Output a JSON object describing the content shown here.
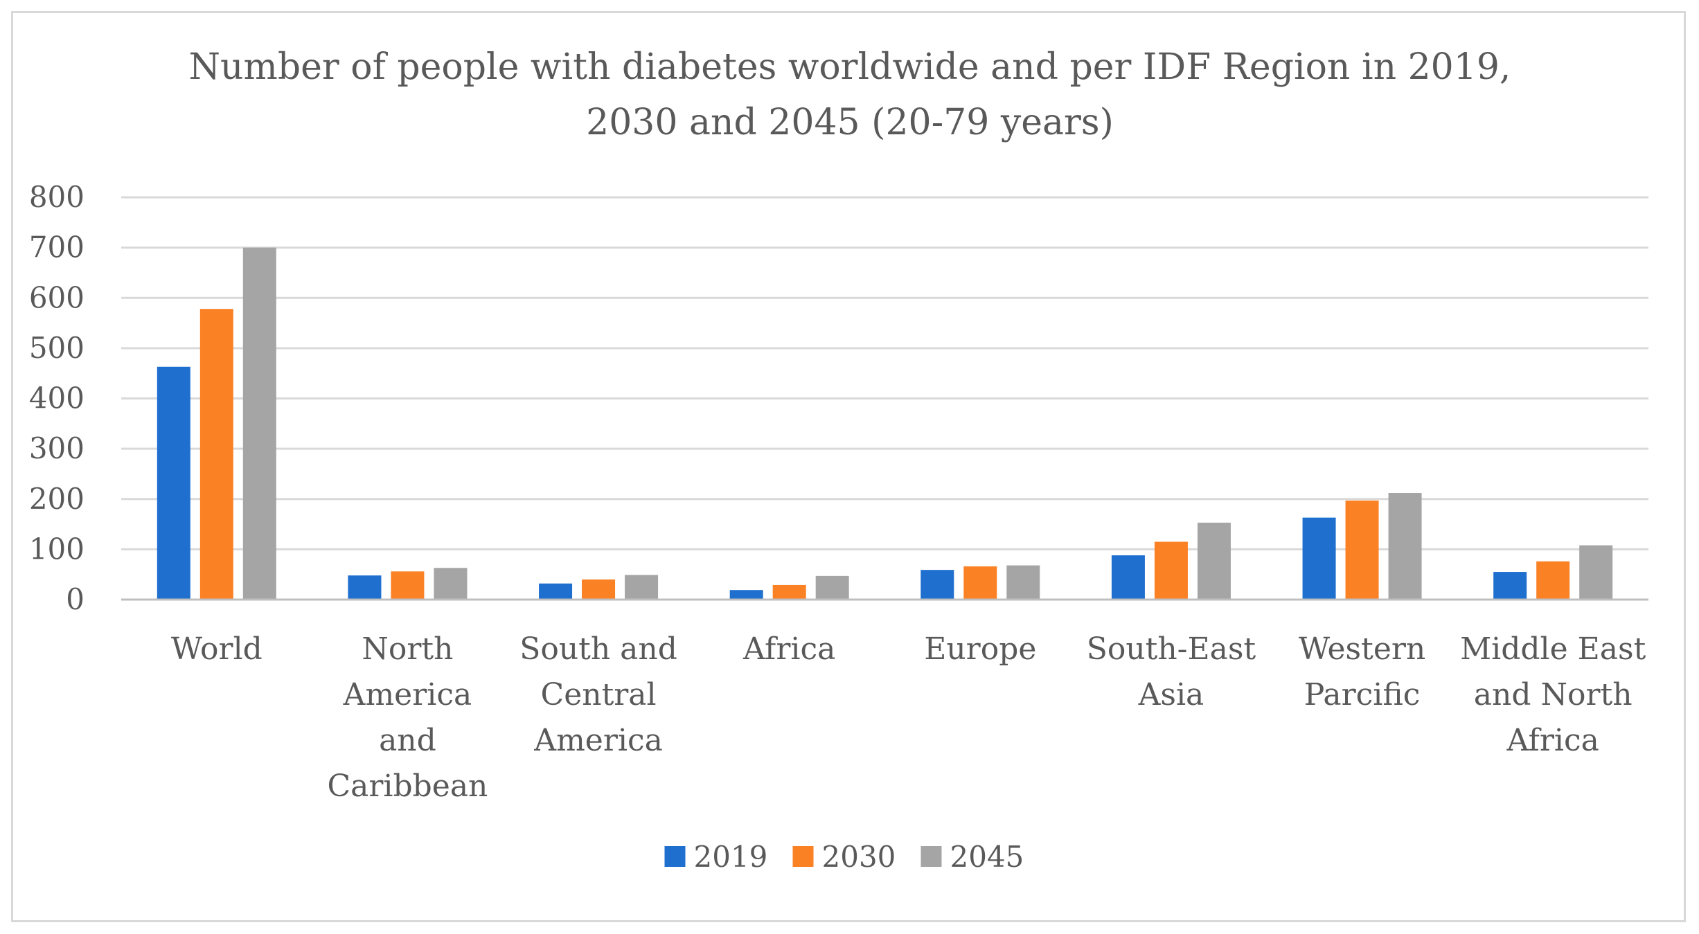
{
  "chart_data": {
    "type": "bar",
    "title_lines": [
      "Number of people with diabetes worldwide and per IDF Region in 2019,",
      "2030 and 2045 (20-79 years)"
    ],
    "categories": [
      [
        "World"
      ],
      [
        "North",
        "America",
        "and",
        "Caribbean"
      ],
      [
        "South and",
        "Central",
        "America"
      ],
      [
        "Africa"
      ],
      [
        "Europe"
      ],
      [
        "South-East",
        "Asia"
      ],
      [
        "Western",
        "Parcific"
      ],
      [
        "Middle East",
        "and North",
        "Africa"
      ]
    ],
    "series": [
      {
        "name": "2019",
        "color": "#1f6fcf",
        "values": [
          463,
          48,
          32,
          19,
          59,
          88,
          163,
          55
        ]
      },
      {
        "name": "2030",
        "color": "#fb8125",
        "values": [
          578,
          56,
          40,
          29,
          66,
          115,
          197,
          76
        ]
      },
      {
        "name": "2045",
        "color": "#a5a5a5",
        "values": [
          700,
          63,
          49,
          47,
          68,
          153,
          212,
          108
        ]
      }
    ],
    "ylim": [
      0,
      800
    ],
    "yticks": [
      0,
      100,
      200,
      300,
      400,
      500,
      600,
      700,
      800
    ],
    "xlabel": "",
    "ylabel": "",
    "grid": true,
    "legend_position": "bottom"
  }
}
